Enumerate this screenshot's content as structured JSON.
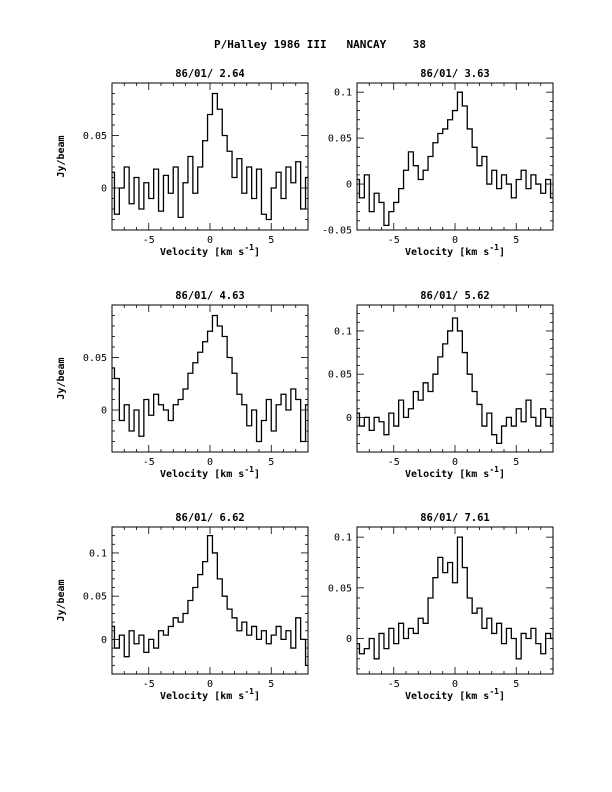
{
  "header": {
    "title": "P/Halley 1986 III   NANCAY    38"
  },
  "chart_data": [
    {
      "type": "line",
      "step": true,
      "title": "86/01/ 2.64",
      "xlabel": "Velocity [km s^-1]",
      "ylabel": "Jy/beam",
      "xlim": [
        -8,
        8
      ],
      "ylim": [
        -0.04,
        0.1
      ],
      "x_ticks": [
        -5,
        0,
        5
      ],
      "x_tick_labels": [
        "-5",
        "0",
        "5"
      ],
      "y_ticks": [
        0,
        0.05
      ],
      "y_tick_labels": [
        "0",
        "0.05"
      ],
      "grid": false,
      "series": [
        {
          "x": [
            -8.0,
            -7.6,
            -7.2,
            -6.8,
            -6.4,
            -6.0,
            -5.6,
            -5.2,
            -4.8,
            -4.4,
            -4.0,
            -3.6,
            -3.2,
            -2.8,
            -2.4,
            -2.0,
            -1.6,
            -1.2,
            -0.8,
            -0.4,
            0.0,
            0.4,
            0.8,
            1.2,
            1.6,
            2.0,
            2.4,
            2.8,
            3.2,
            3.6,
            4.0,
            4.4,
            4.8,
            5.2,
            5.6,
            6.0,
            6.4,
            6.8,
            7.2,
            7.6,
            8.0
          ],
          "values": [
            0.015,
            -0.025,
            0.0,
            0.02,
            -0.015,
            0.01,
            -0.02,
            0.005,
            -0.01,
            0.018,
            -0.022,
            0.012,
            -0.005,
            0.02,
            -0.028,
            0.005,
            0.03,
            -0.005,
            0.02,
            0.045,
            0.07,
            0.09,
            0.075,
            0.05,
            0.035,
            0.01,
            0.028,
            -0.005,
            0.02,
            -0.01,
            0.018,
            -0.025,
            -0.03,
            0.0,
            0.015,
            -0.01,
            0.02,
            0.005,
            0.025,
            -0.02,
            0.01
          ]
        }
      ]
    },
    {
      "type": "line",
      "step": true,
      "title": "86/01/ 3.63",
      "xlabel": "Velocity [km s^-1]",
      "ylabel": "",
      "xlim": [
        -8,
        8
      ],
      "ylim": [
        -0.05,
        0.11
      ],
      "x_ticks": [
        -5,
        0,
        5
      ],
      "x_tick_labels": [
        "-5",
        "0",
        "5"
      ],
      "y_ticks": [
        -0.05,
        0,
        0.05,
        0.1
      ],
      "y_tick_labels": [
        "-0.05",
        "0",
        "0.05",
        "0.1"
      ],
      "grid": false,
      "series": [
        {
          "x": [
            -8.0,
            -7.6,
            -7.2,
            -6.8,
            -6.4,
            -6.0,
            -5.6,
            -5.2,
            -4.8,
            -4.4,
            -4.0,
            -3.6,
            -3.2,
            -2.8,
            -2.4,
            -2.0,
            -1.6,
            -1.2,
            -0.8,
            -0.4,
            0.0,
            0.4,
            0.8,
            1.2,
            1.6,
            2.0,
            2.4,
            2.8,
            3.2,
            3.6,
            4.0,
            4.4,
            4.8,
            5.2,
            5.6,
            6.0,
            6.4,
            6.8,
            7.2,
            7.6,
            8.0
          ],
          "values": [
            0.005,
            -0.015,
            0.01,
            -0.03,
            -0.01,
            -0.02,
            -0.045,
            -0.03,
            -0.02,
            -0.005,
            0.015,
            0.035,
            0.02,
            0.005,
            0.015,
            0.03,
            0.045,
            0.055,
            0.06,
            0.07,
            0.08,
            0.1,
            0.085,
            0.06,
            0.04,
            0.02,
            0.03,
            0.0,
            0.015,
            -0.005,
            0.01,
            0.0,
            -0.015,
            0.005,
            0.015,
            -0.005,
            0.01,
            0.0,
            -0.01,
            0.005,
            -0.015
          ]
        }
      ]
    },
    {
      "type": "line",
      "step": true,
      "title": "86/01/ 4.63",
      "xlabel": "Velocity [km s^-1]",
      "ylabel": "Jy/beam",
      "xlim": [
        -8,
        8
      ],
      "ylim": [
        -0.04,
        0.1
      ],
      "x_ticks": [
        -5,
        0,
        5
      ],
      "x_tick_labels": [
        "-5",
        "0",
        "5"
      ],
      "y_ticks": [
        0,
        0.05
      ],
      "y_tick_labels": [
        "0",
        "0.05"
      ],
      "grid": false,
      "series": [
        {
          "x": [
            -8.0,
            -7.6,
            -7.2,
            -6.8,
            -6.4,
            -6.0,
            -5.6,
            -5.2,
            -4.8,
            -4.4,
            -4.0,
            -3.6,
            -3.2,
            -2.8,
            -2.4,
            -2.0,
            -1.6,
            -1.2,
            -0.8,
            -0.4,
            0.0,
            0.4,
            0.8,
            1.2,
            1.6,
            2.0,
            2.4,
            2.8,
            3.2,
            3.6,
            4.0,
            4.4,
            4.8,
            5.2,
            5.6,
            6.0,
            6.4,
            6.8,
            7.2,
            7.6,
            8.0
          ],
          "values": [
            0.04,
            0.03,
            -0.01,
            0.005,
            -0.02,
            0.0,
            -0.025,
            0.01,
            -0.005,
            0.015,
            0.005,
            0.0,
            -0.01,
            0.005,
            0.01,
            0.02,
            0.035,
            0.045,
            0.055,
            0.065,
            0.075,
            0.09,
            0.08,
            0.07,
            0.05,
            0.035,
            0.015,
            0.005,
            -0.015,
            0.0,
            -0.03,
            -0.01,
            0.01,
            -0.02,
            0.005,
            0.015,
            0.0,
            0.02,
            0.01,
            -0.03,
            0.005
          ]
        }
      ]
    },
    {
      "type": "line",
      "step": true,
      "title": "86/01/ 5.62",
      "xlabel": "Velocity [km s^-1]",
      "ylabel": "",
      "xlim": [
        -8,
        8
      ],
      "ylim": [
        -0.04,
        0.13
      ],
      "x_ticks": [
        -5,
        0,
        5
      ],
      "x_tick_labels": [
        "-5",
        "0",
        "5"
      ],
      "y_ticks": [
        0,
        0.05,
        0.1
      ],
      "y_tick_labels": [
        "0",
        "0.05",
        "0.1"
      ],
      "grid": false,
      "series": [
        {
          "x": [
            -8.0,
            -7.6,
            -7.2,
            -6.8,
            -6.4,
            -6.0,
            -5.6,
            -5.2,
            -4.8,
            -4.4,
            -4.0,
            -3.6,
            -3.2,
            -2.8,
            -2.4,
            -2.0,
            -1.6,
            -1.2,
            -0.8,
            -0.4,
            0.0,
            0.4,
            0.8,
            1.2,
            1.6,
            2.0,
            2.4,
            2.8,
            3.2,
            3.6,
            4.0,
            4.4,
            4.8,
            5.2,
            5.6,
            6.0,
            6.4,
            6.8,
            7.2,
            7.6,
            8.0
          ],
          "values": [
            0.005,
            -0.01,
            0.0,
            -0.015,
            0.0,
            -0.005,
            -0.02,
            0.005,
            -0.01,
            0.02,
            0.0,
            0.01,
            0.03,
            0.02,
            0.04,
            0.03,
            0.05,
            0.07,
            0.085,
            0.1,
            0.115,
            0.1,
            0.075,
            0.05,
            0.03,
            0.015,
            -0.01,
            0.005,
            -0.02,
            -0.03,
            -0.01,
            0.0,
            -0.01,
            0.01,
            -0.005,
            0.02,
            0.0,
            -0.01,
            0.01,
            0.0,
            -0.01
          ]
        }
      ]
    },
    {
      "type": "line",
      "step": true,
      "title": "86/01/ 6.62",
      "xlabel": "Velocity [km s^-1]",
      "ylabel": "Jy/beam",
      "xlim": [
        -8,
        8
      ],
      "ylim": [
        -0.04,
        0.13
      ],
      "x_ticks": [
        -5,
        0,
        5
      ],
      "x_tick_labels": [
        "-5",
        "0",
        "5"
      ],
      "y_ticks": [
        0,
        0.05,
        0.1
      ],
      "y_tick_labels": [
        "0",
        "0.05",
        "0.1"
      ],
      "grid": false,
      "series": [
        {
          "x": [
            -8.0,
            -7.6,
            -7.2,
            -6.8,
            -6.4,
            -6.0,
            -5.6,
            -5.2,
            -4.8,
            -4.4,
            -4.0,
            -3.6,
            -3.2,
            -2.8,
            -2.4,
            -2.0,
            -1.6,
            -1.2,
            -0.8,
            -0.4,
            0.0,
            0.4,
            0.8,
            1.2,
            1.6,
            2.0,
            2.4,
            2.8,
            3.2,
            3.6,
            4.0,
            4.4,
            4.8,
            5.2,
            5.6,
            6.0,
            6.4,
            6.8,
            7.2,
            7.6,
            8.0
          ],
          "values": [
            0.015,
            -0.01,
            0.005,
            -0.02,
            0.01,
            -0.005,
            0.005,
            -0.015,
            0.0,
            -0.01,
            0.01,
            0.005,
            0.015,
            0.025,
            0.02,
            0.03,
            0.045,
            0.06,
            0.075,
            0.09,
            0.12,
            0.1,
            0.07,
            0.05,
            0.035,
            0.025,
            0.01,
            0.02,
            0.005,
            0.015,
            0.0,
            0.01,
            -0.005,
            0.005,
            0.015,
            0.0,
            0.01,
            -0.01,
            0.025,
            0.0,
            -0.03
          ]
        }
      ]
    },
    {
      "type": "line",
      "step": true,
      "title": "86/01/ 7.61",
      "xlabel": "Velocity [km s^-1]",
      "ylabel": "",
      "xlim": [
        -8,
        8
      ],
      "ylim": [
        -0.035,
        0.11
      ],
      "x_ticks": [
        -5,
        0,
        5
      ],
      "x_tick_labels": [
        "-5",
        "0",
        "5"
      ],
      "y_ticks": [
        0,
        0.05,
        0.1
      ],
      "y_tick_labels": [
        "0",
        "0.05",
        "0.1"
      ],
      "grid": false,
      "series": [
        {
          "x": [
            -8.0,
            -7.6,
            -7.2,
            -6.8,
            -6.4,
            -6.0,
            -5.6,
            -5.2,
            -4.8,
            -4.4,
            -4.0,
            -3.6,
            -3.2,
            -2.8,
            -2.4,
            -2.0,
            -1.6,
            -1.2,
            -0.8,
            -0.4,
            0.0,
            0.4,
            0.8,
            1.2,
            1.6,
            2.0,
            2.4,
            2.8,
            3.2,
            3.6,
            4.0,
            4.4,
            4.8,
            5.2,
            5.6,
            6.0,
            6.4,
            6.8,
            7.2,
            7.6,
            8.0
          ],
          "values": [
            -0.005,
            -0.015,
            -0.01,
            0.0,
            -0.02,
            0.005,
            -0.01,
            0.01,
            -0.005,
            0.015,
            0.0,
            0.01,
            0.005,
            0.02,
            0.015,
            0.04,
            0.06,
            0.08,
            0.065,
            0.075,
            0.055,
            0.1,
            0.07,
            0.04,
            0.025,
            0.03,
            0.01,
            0.02,
            0.005,
            0.015,
            -0.005,
            0.01,
            0.0,
            -0.02,
            0.005,
            0.0,
            0.01,
            -0.005,
            -0.015,
            0.005,
            0.0
          ]
        }
      ]
    }
  ]
}
